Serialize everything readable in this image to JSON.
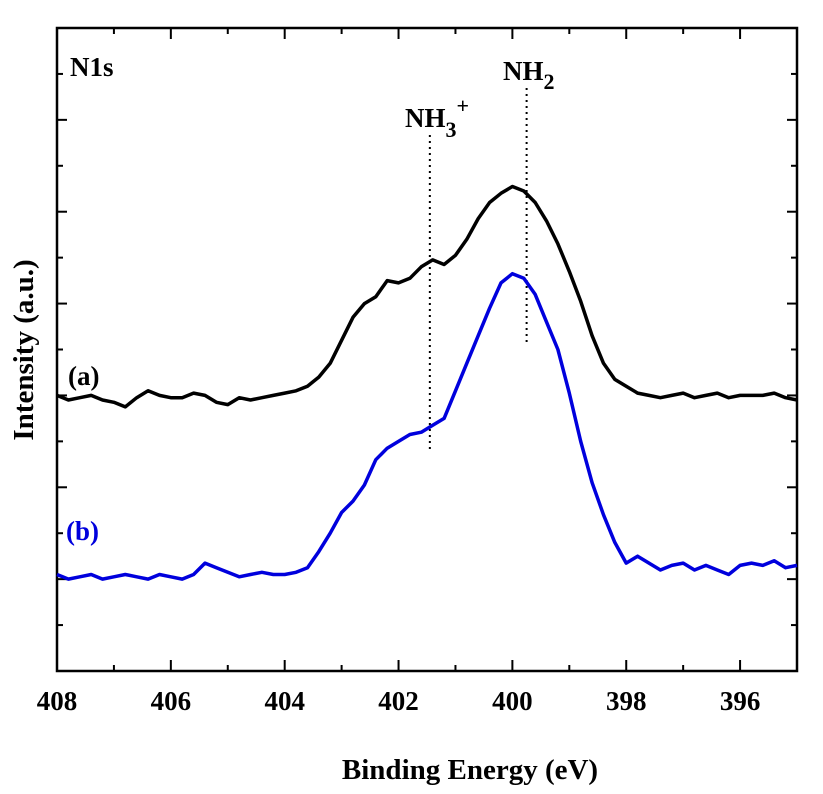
{
  "chart_data": {
    "type": "line",
    "title": "",
    "xlabel": "Binding Energy (eV)",
    "ylabel": "Intensity (a.u.)",
    "xlim": [
      408,
      395
    ],
    "ylim": [
      0,
      14
    ],
    "x_reversed": true,
    "xticks": [
      408,
      406,
      404,
      402,
      400,
      398,
      396
    ],
    "yticks_labeled": false,
    "grid": false,
    "panel_label": "N1s",
    "annotations": [
      {
        "label": "NH2",
        "text_main": "NH",
        "text_sub": "2",
        "x": 399.75
      },
      {
        "label": "NH3+",
        "text_main": "NH",
        "text_sub": "3",
        "text_sup": "+",
        "x": 401.45
      }
    ],
    "series": [
      {
        "name": "(a)",
        "color": "#000000",
        "points": [
          [
            408.0,
            6.0
          ],
          [
            407.8,
            5.9
          ],
          [
            407.6,
            5.95
          ],
          [
            407.4,
            6.0
          ],
          [
            407.2,
            5.9
          ],
          [
            407.0,
            5.85
          ],
          [
            406.8,
            5.75
          ],
          [
            406.6,
            5.95
          ],
          [
            406.4,
            6.1
          ],
          [
            406.2,
            6.0
          ],
          [
            406.0,
            5.95
          ],
          [
            405.8,
            5.95
          ],
          [
            405.6,
            6.05
          ],
          [
            405.4,
            6.0
          ],
          [
            405.2,
            5.85
          ],
          [
            405.0,
            5.8
          ],
          [
            404.8,
            5.95
          ],
          [
            404.6,
            5.9
          ],
          [
            404.4,
            5.95
          ],
          [
            404.2,
            6.0
          ],
          [
            404.0,
            6.05
          ],
          [
            403.8,
            6.1
          ],
          [
            403.6,
            6.2
          ],
          [
            403.4,
            6.4
          ],
          [
            403.2,
            6.7
          ],
          [
            403.0,
            7.2
          ],
          [
            402.8,
            7.7
          ],
          [
            402.6,
            8.0
          ],
          [
            402.4,
            8.15
          ],
          [
            402.2,
            8.5
          ],
          [
            402.0,
            8.45
          ],
          [
            401.8,
            8.55
          ],
          [
            401.6,
            8.8
          ],
          [
            401.4,
            8.95
          ],
          [
            401.2,
            8.85
          ],
          [
            401.0,
            9.05
          ],
          [
            400.8,
            9.4
          ],
          [
            400.6,
            9.85
          ],
          [
            400.4,
            10.2
          ],
          [
            400.2,
            10.4
          ],
          [
            400.0,
            10.55
          ],
          [
            399.8,
            10.45
          ],
          [
            399.6,
            10.2
          ],
          [
            399.4,
            9.8
          ],
          [
            399.2,
            9.3
          ],
          [
            399.0,
            8.7
          ],
          [
            398.8,
            8.05
          ],
          [
            398.6,
            7.3
          ],
          [
            398.4,
            6.7
          ],
          [
            398.2,
            6.35
          ],
          [
            398.0,
            6.2
          ],
          [
            397.8,
            6.05
          ],
          [
            397.6,
            6.0
          ],
          [
            397.4,
            5.95
          ],
          [
            397.2,
            6.0
          ],
          [
            397.0,
            6.05
          ],
          [
            396.8,
            5.95
          ],
          [
            396.6,
            6.0
          ],
          [
            396.4,
            6.05
          ],
          [
            396.2,
            5.95
          ],
          [
            396.0,
            6.0
          ],
          [
            395.8,
            6.0
          ],
          [
            395.6,
            6.0
          ],
          [
            395.4,
            6.05
          ],
          [
            395.2,
            5.95
          ],
          [
            395.0,
            5.9
          ]
        ]
      },
      {
        "name": "(b)",
        "color": "#0000dd",
        "points": [
          [
            408.0,
            2.1
          ],
          [
            407.8,
            2.0
          ],
          [
            407.6,
            2.05
          ],
          [
            407.4,
            2.1
          ],
          [
            407.2,
            2.0
          ],
          [
            407.0,
            2.05
          ],
          [
            406.8,
            2.1
          ],
          [
            406.6,
            2.05
          ],
          [
            406.4,
            2.0
          ],
          [
            406.2,
            2.1
          ],
          [
            406.0,
            2.05
          ],
          [
            405.8,
            2.0
          ],
          [
            405.6,
            2.1
          ],
          [
            405.4,
            2.35
          ],
          [
            405.2,
            2.25
          ],
          [
            405.0,
            2.15
          ],
          [
            404.8,
            2.05
          ],
          [
            404.6,
            2.1
          ],
          [
            404.4,
            2.15
          ],
          [
            404.2,
            2.1
          ],
          [
            404.0,
            2.1
          ],
          [
            403.8,
            2.15
          ],
          [
            403.6,
            2.25
          ],
          [
            403.4,
            2.6
          ],
          [
            403.2,
            3.0
          ],
          [
            403.0,
            3.45
          ],
          [
            402.8,
            3.7
          ],
          [
            402.6,
            4.05
          ],
          [
            402.4,
            4.6
          ],
          [
            402.2,
            4.85
          ],
          [
            402.0,
            5.0
          ],
          [
            401.8,
            5.15
          ],
          [
            401.6,
            5.2
          ],
          [
            401.4,
            5.35
          ],
          [
            401.2,
            5.5
          ],
          [
            401.0,
            6.1
          ],
          [
            400.8,
            6.7
          ],
          [
            400.6,
            7.3
          ],
          [
            400.4,
            7.9
          ],
          [
            400.2,
            8.45
          ],
          [
            400.0,
            8.65
          ],
          [
            399.8,
            8.55
          ],
          [
            399.6,
            8.2
          ],
          [
            399.4,
            7.6
          ],
          [
            399.2,
            7.0
          ],
          [
            399.0,
            6.05
          ],
          [
            398.8,
            5.0
          ],
          [
            398.6,
            4.1
          ],
          [
            398.4,
            3.4
          ],
          [
            398.2,
            2.8
          ],
          [
            398.0,
            2.35
          ],
          [
            397.8,
            2.5
          ],
          [
            397.6,
            2.35
          ],
          [
            397.4,
            2.2
          ],
          [
            397.2,
            2.3
          ],
          [
            397.0,
            2.35
          ],
          [
            396.8,
            2.2
          ],
          [
            396.6,
            2.3
          ],
          [
            396.4,
            2.2
          ],
          [
            396.2,
            2.1
          ],
          [
            396.0,
            2.3
          ],
          [
            395.8,
            2.35
          ],
          [
            395.6,
            2.3
          ],
          [
            395.4,
            2.4
          ],
          [
            395.2,
            2.25
          ],
          [
            395.0,
            2.3
          ]
        ]
      }
    ]
  }
}
